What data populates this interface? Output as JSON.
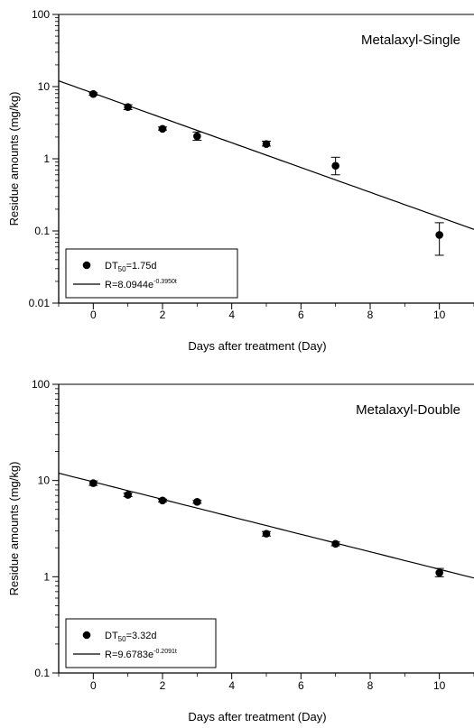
{
  "chart_data": [
    {
      "type": "scatter",
      "title": "Metalaxyl-Single",
      "xlabel": "Days after treatment (Day)",
      "ylabel": "Residue amounts (mg/kg)",
      "xlim": [
        -1,
        11
      ],
      "ylim": [
        0.01,
        100
      ],
      "yscale": "log",
      "xticks": [
        "0",
        "2",
        "4",
        "6",
        "8",
        "10"
      ],
      "yticks": [
        "0.01",
        "0.1",
        "1",
        "10",
        "100"
      ],
      "points": [
        {
          "x": 0,
          "y": 7.9,
          "err_low": 7.6,
          "err_high": 8.2
        },
        {
          "x": 1,
          "y": 5.2,
          "err_low": 4.8,
          "err_high": 5.6
        },
        {
          "x": 2,
          "y": 2.6,
          "err_low": 2.5,
          "err_high": 2.75
        },
        {
          "x": 3,
          "y": 2.05,
          "err_low": 1.8,
          "err_high": 2.35
        },
        {
          "x": 5,
          "y": 1.6,
          "err_low": 1.5,
          "err_high": 1.75
        },
        {
          "x": 7,
          "y": 0.8,
          "err_low": 0.6,
          "err_high": 1.05
        },
        {
          "x": 10,
          "y": 0.088,
          "err_low": 0.046,
          "err_high": 0.13
        }
      ],
      "fit": {
        "a": 8.0944,
        "k": 0.395
      },
      "legend": {
        "marker_prefix": "DT",
        "marker_sub": "50",
        "marker_suffix": "=1.75d",
        "line_prefix": "R=8.0944e",
        "line_sup": "-0.3950t"
      }
    },
    {
      "type": "scatter",
      "title": "Metalaxyl-Double",
      "xlabel": "Days after treatment (Day)",
      "ylabel": "Residue amounts (mg/kg)",
      "xlim": [
        -1,
        11
      ],
      "ylim": [
        0.1,
        100
      ],
      "yscale": "log",
      "xticks": [
        "0",
        "2",
        "4",
        "6",
        "8",
        "10"
      ],
      "yticks": [
        "0.1",
        "1",
        "10",
        "100"
      ],
      "points": [
        {
          "x": 0,
          "y": 9.4,
          "err_low": 8.9,
          "err_high": 9.9
        },
        {
          "x": 1,
          "y": 7.1,
          "err_low": 6.8,
          "err_high": 7.4
        },
        {
          "x": 2,
          "y": 6.2,
          "err_low": 6.0,
          "err_high": 6.4
        },
        {
          "x": 3,
          "y": 6.0,
          "err_low": 5.8,
          "err_high": 6.2
        },
        {
          "x": 5,
          "y": 2.8,
          "err_low": 2.65,
          "err_high": 2.95
        },
        {
          "x": 7,
          "y": 2.2,
          "err_low": 2.1,
          "err_high": 2.3
        },
        {
          "x": 10,
          "y": 1.1,
          "err_low": 1.0,
          "err_high": 1.22
        }
      ],
      "fit": {
        "a": 9.6783,
        "k": 0.2091
      },
      "legend": {
        "marker_prefix": "DT",
        "marker_sub": "50",
        "marker_suffix": "=3.32d",
        "line_prefix": "R=9.6783e",
        "line_sup": "-0.2091t"
      }
    }
  ]
}
